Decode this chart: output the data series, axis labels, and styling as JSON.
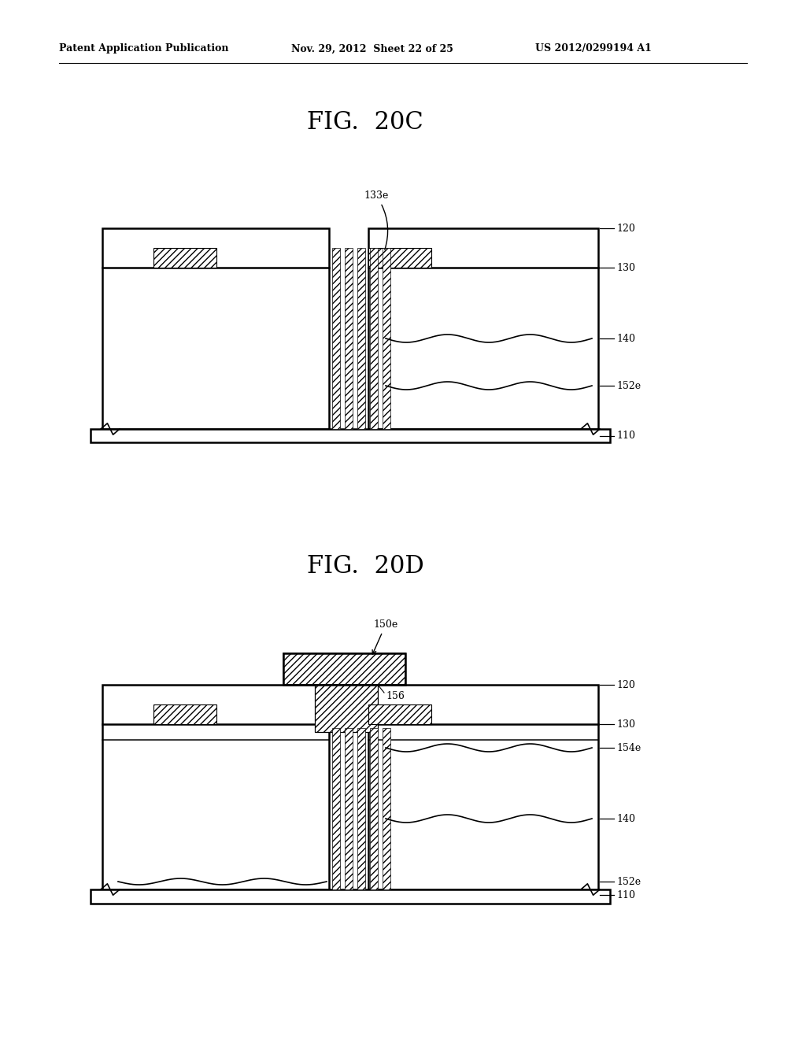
{
  "header_left": "Patent Application Publication",
  "header_mid": "Nov. 29, 2012  Sheet 22 of 25",
  "header_right": "US 2012/0299194 A1",
  "fig1_title": "FIG.  20C",
  "fig2_title": "FIG.  20D",
  "bg_color": "#ffffff",
  "line_color": "#000000"
}
